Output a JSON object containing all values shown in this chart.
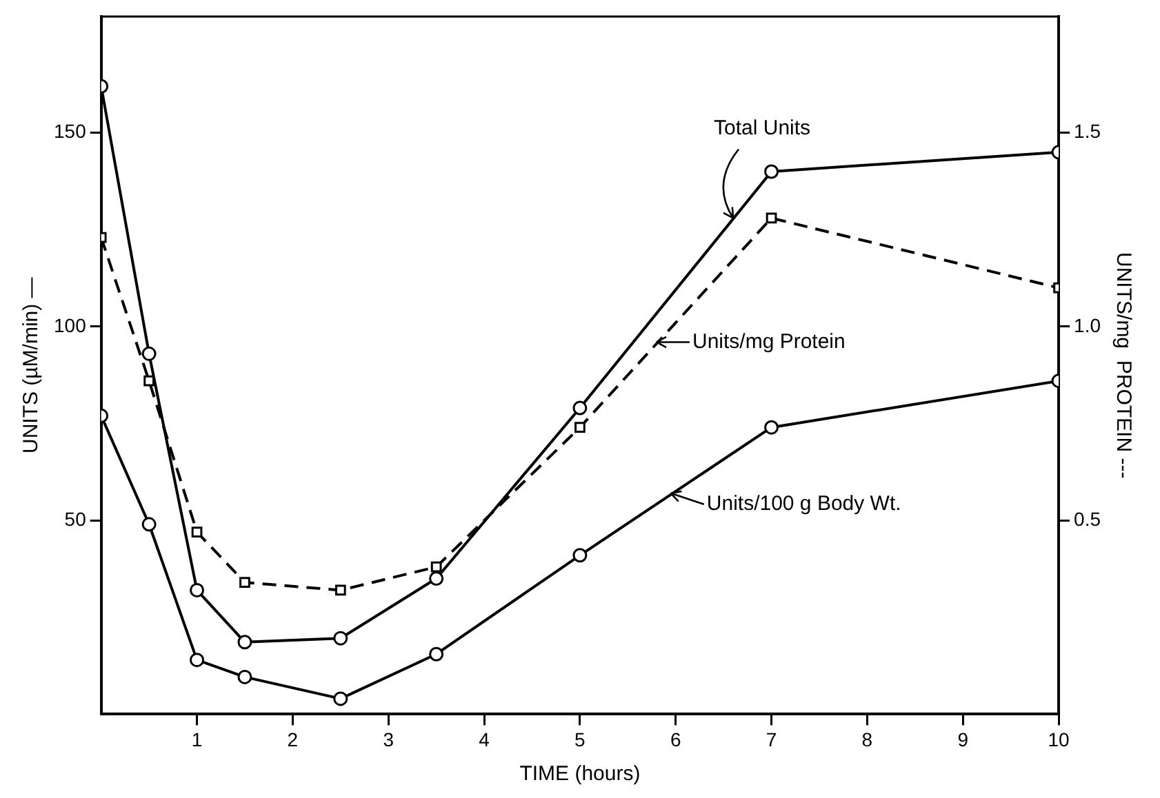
{
  "chart_data": {
    "type": "line",
    "xlabel": "TIME (hours)",
    "ylabel": "UNITS (µM/min) —",
    "y2label": "UNITS/mg  PROTEIN ---",
    "x": [
      0,
      0.5,
      1,
      1.5,
      2.5,
      3.5,
      5,
      7,
      10
    ],
    "xlim": [
      0,
      10
    ],
    "xticks": [
      1,
      2,
      3,
      4,
      5,
      6,
      7,
      8,
      9,
      10
    ],
    "ylim": [
      0,
      180
    ],
    "yticks": [
      50,
      100,
      150
    ],
    "y2lim": [
      0,
      1.8
    ],
    "y2ticks": [
      0.5,
      {
        "value": 1.0,
        "label": "1.0"
      },
      1.5
    ],
    "grid": false,
    "legend": false,
    "series": [
      {
        "color": "#000000",
        "marker": "circle",
        "line_style": "solid",
        "values": [
          162,
          93,
          32,
          18.6,
          19.6,
          35,
          79,
          140,
          145
        ]
      },
      {
        "color": "#000000",
        "marker": "square",
        "line_style": "dashed",
        "axis": "y2",
        "values": [
          1.23,
          0.86,
          0.47,
          0.34,
          0.32,
          0.38,
          0.74,
          1.28,
          1.1
        ]
      },
      {
        "color": "#000000",
        "marker": "circle",
        "line_style": "solid",
        "values": [
          77,
          49,
          14,
          9.6,
          4,
          15.5,
          41,
          74,
          86
        ]
      }
    ],
    "annotations": [
      {
        "text": "Total Units",
        "x": 6.6,
        "y": 128
      },
      {
        "text": "Units/mg Protein",
        "x": 5.8,
        "y": 96
      },
      {
        "text": "Units/100 g Body Wt.",
        "x": 5.95,
        "y": 57
      }
    ]
  }
}
